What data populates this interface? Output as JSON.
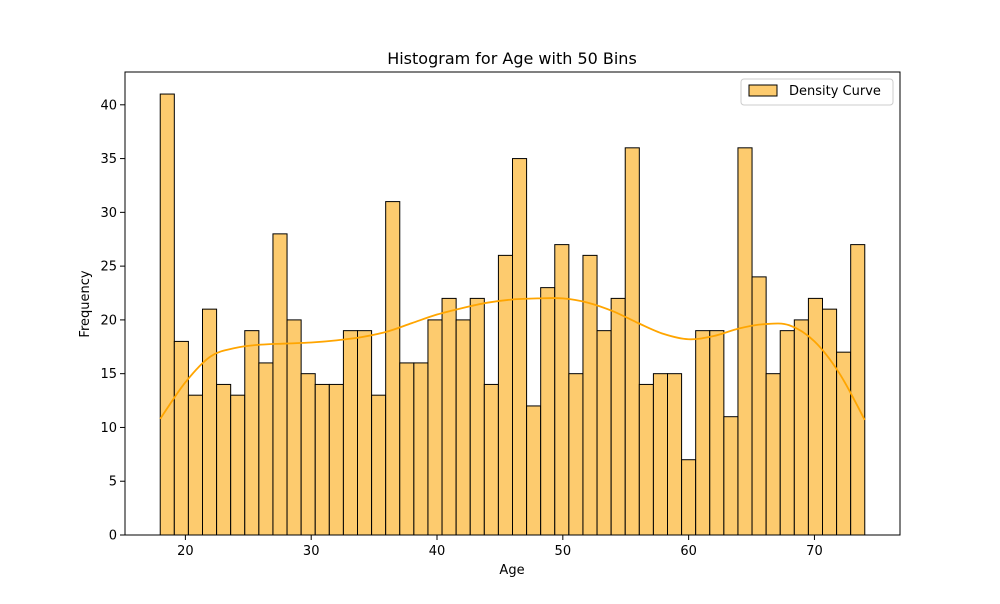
{
  "chart_data": {
    "type": "bar",
    "title": "Histogram for Age with 50 Bins",
    "xlabel": "Age",
    "ylabel": "Frequency",
    "bin_start": 18,
    "bin_end": 74,
    "bin_count": 50,
    "values": [
      41,
      18,
      13,
      21,
      14,
      13,
      19,
      16,
      28,
      20,
      15,
      14,
      14,
      19,
      19,
      13,
      31,
      16,
      16,
      20,
      22,
      20,
      22,
      14,
      26,
      35,
      12,
      23,
      27,
      15,
      26,
      19,
      22,
      36,
      14,
      15,
      15,
      7,
      19,
      19,
      11,
      36,
      24,
      15,
      19,
      20,
      22,
      21,
      17,
      27
    ],
    "xlim": [
      15.2,
      76.8
    ],
    "ylim": [
      0,
      43.05
    ],
    "xticks": [
      20,
      30,
      40,
      50,
      60,
      70
    ],
    "yticks": [
      0,
      5,
      10,
      15,
      20,
      25,
      30,
      35,
      40
    ],
    "density_curve": {
      "x": [
        18,
        20,
        22,
        24,
        26,
        28,
        30,
        32,
        34,
        36,
        38,
        40,
        42,
        44,
        46,
        48,
        50,
        52,
        54,
        56,
        58,
        60,
        62,
        64,
        66,
        68,
        70,
        72,
        74
      ],
      "y": [
        10.8,
        14.2,
        16.6,
        17.4,
        17.7,
        17.8,
        17.9,
        18.1,
        18.4,
        18.9,
        19.7,
        20.5,
        21.1,
        21.6,
        21.9,
        22.0,
        22.0,
        21.6,
        20.8,
        19.7,
        18.7,
        18.2,
        18.5,
        19.2,
        19.6,
        19.5,
        18.0,
        15.0,
        10.7
      ]
    },
    "grid": false,
    "legend": {
      "position": "top-right",
      "entries": [
        "Density Curve"
      ]
    },
    "colors": {
      "bar_fill": "#fdcb6e",
      "bar_edge": "#000000",
      "curve": "#ffa500"
    }
  }
}
